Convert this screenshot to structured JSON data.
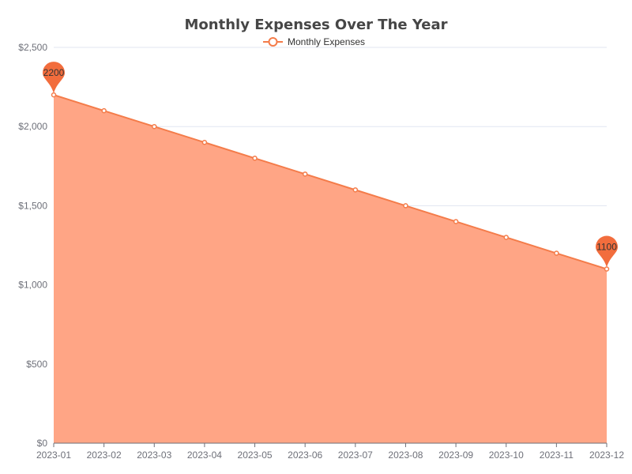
{
  "colors": {
    "line": "#f47c4a",
    "area": "#ffa585",
    "pin": "#f26d3d",
    "grid": "#e0e6f1",
    "axis_text": "#6e7079"
  },
  "chart_data": {
    "type": "area",
    "title": "Monthly Expenses Over The Year",
    "legend": {
      "position": "top-center",
      "entries": [
        "Monthly Expenses"
      ]
    },
    "x": [
      "2023-01",
      "2023-02",
      "2023-03",
      "2023-04",
      "2023-05",
      "2023-06",
      "2023-07",
      "2023-08",
      "2023-09",
      "2023-10",
      "2023-11",
      "2023-12"
    ],
    "series": [
      {
        "name": "Monthly Expenses",
        "values": [
          2200,
          2100,
          2000,
          1900,
          1800,
          1700,
          1600,
          1500,
          1400,
          1300,
          1200,
          1100
        ]
      }
    ],
    "ylim": [
      0,
      2500
    ],
    "yticks": [
      0,
      500,
      1000,
      1500,
      2000,
      2500
    ],
    "ytick_labels": [
      "$0",
      "$500",
      "$1,000",
      "$1,500",
      "$2,000",
      "$2,500"
    ],
    "grid": true,
    "markers": [
      {
        "type": "max",
        "value": 2200,
        "label": "2200"
      },
      {
        "type": "min",
        "value": 1100,
        "label": "1100"
      }
    ]
  }
}
